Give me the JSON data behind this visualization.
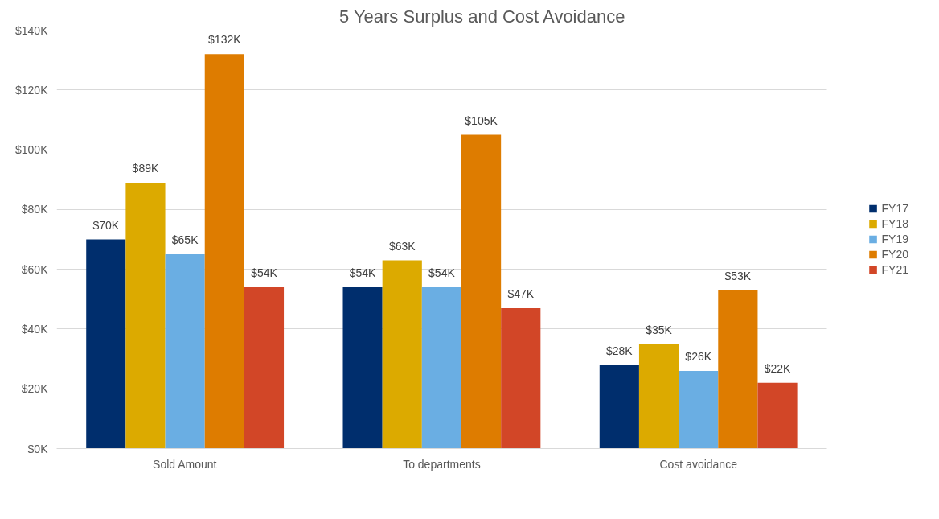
{
  "chart_data": {
    "type": "bar",
    "title": "5 Years Surplus and Cost Avoidance",
    "categories": [
      "Sold Amount",
      "To departments",
      "Cost avoidance"
    ],
    "series": [
      {
        "name": "FY17",
        "color": "#002e6d",
        "values": [
          70,
          54,
          28
        ],
        "value_labels": [
          "$70K",
          "$54K",
          "$28K"
        ]
      },
      {
        "name": "FY18",
        "color": "#dcaa00",
        "values": [
          89,
          63,
          35
        ],
        "value_labels": [
          "$89K",
          "$63K",
          "$35K"
        ]
      },
      {
        "name": "FY19",
        "color": "#6aaee3",
        "values": [
          65,
          54,
          26
        ],
        "value_labels": [
          "$65K",
          "$54K",
          "$26K"
        ]
      },
      {
        "name": "FY20",
        "color": "#de7c00",
        "values": [
          132,
          105,
          53
        ],
        "value_labels": [
          "$132K",
          "$105K",
          "$53K"
        ]
      },
      {
        "name": "FY21",
        "color": "#d24627",
        "values": [
          54,
          47,
          22
        ],
        "value_labels": [
          "$54K",
          "$47K",
          "$22K"
        ]
      }
    ],
    "ylim": [
      0,
      140
    ],
    "yticks": [
      {
        "value": 0,
        "label": "$0K"
      },
      {
        "value": 20,
        "label": "$20K"
      },
      {
        "value": 40,
        "label": "$40K"
      },
      {
        "value": 60,
        "label": "$60K"
      },
      {
        "value": 80,
        "label": "$80K"
      },
      {
        "value": 100,
        "label": "$100K"
      },
      {
        "value": 120,
        "label": "$120K"
      },
      {
        "value": 140,
        "label": "$140K"
      }
    ],
    "grid": "y",
    "legend": "right"
  }
}
